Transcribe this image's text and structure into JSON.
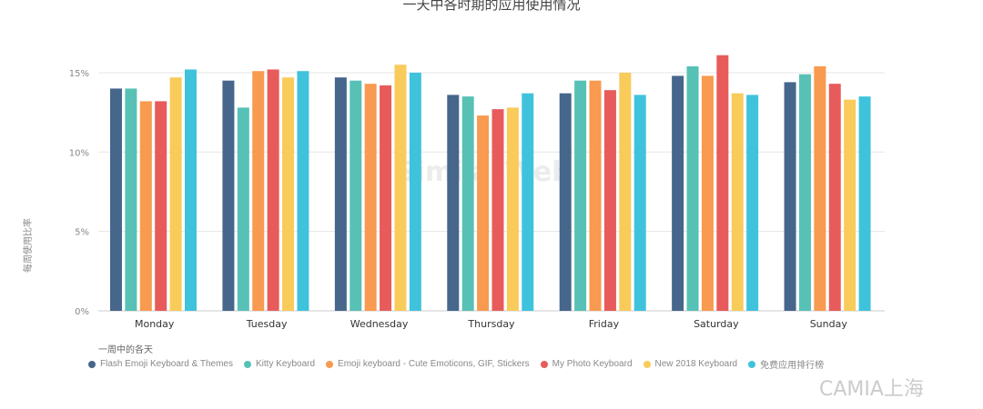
{
  "chart_data": {
    "type": "bar",
    "title": "一天中各时期的应用使用情况",
    "xlabel": "一周中的各天",
    "ylabel": "每周使用比率",
    "ylim": [
      0,
      17
    ],
    "yticks": [
      "0%",
      "5%",
      "10%",
      "15%"
    ],
    "grid": true,
    "legend_position": "bottom",
    "categories": [
      "Monday",
      "Tuesday",
      "Wednesday",
      "Thursday",
      "Friday",
      "Saturday",
      "Sunday"
    ],
    "series": [
      {
        "name": "Flash Emoji Keyboard & Themes",
        "color": "#46668c",
        "values": [
          14.0,
          14.5,
          14.7,
          13.6,
          13.7,
          14.8,
          14.4
        ]
      },
      {
        "name": "Kitty Keyboard",
        "color": "#57c1b6",
        "values": [
          14.0,
          12.8,
          14.5,
          13.5,
          14.5,
          15.4,
          14.9
        ]
      },
      {
        "name": "Emoji keyboard - Cute Emoticons, GIF, Stickers",
        "color": "#f89a4f",
        "values": [
          13.2,
          15.1,
          14.3,
          12.3,
          14.5,
          14.8,
          15.4
        ]
      },
      {
        "name": "My Photo Keyboard",
        "color": "#e85b5b",
        "values": [
          13.2,
          15.2,
          14.2,
          12.7,
          13.9,
          16.1,
          14.3
        ]
      },
      {
        "name": "New 2018 Keyboard",
        "color": "#f8cb5b",
        "values": [
          14.7,
          14.7,
          15.5,
          12.8,
          15.0,
          13.7,
          13.3
        ]
      },
      {
        "name": "免费应用排行榜",
        "color": "#3fc3dc",
        "values": [
          15.2,
          15.1,
          15.0,
          13.7,
          13.6,
          13.6,
          13.5
        ]
      }
    ]
  },
  "watermark": "SimilarWeb",
  "watermark2": "CAMIA上海"
}
